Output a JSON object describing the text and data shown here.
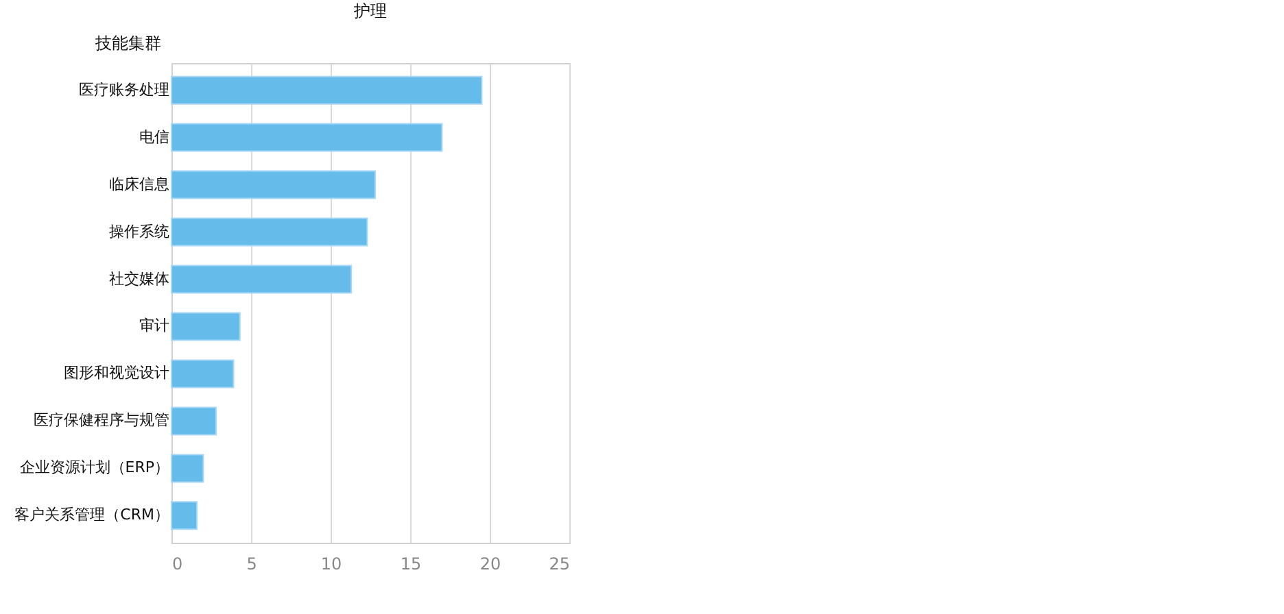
{
  "chart_data": {
    "type": "bar",
    "orientation": "horizontal",
    "title": "护理",
    "ylabel": "技能集群",
    "categories": [
      "医疗账务处理",
      "电信",
      "临床信息",
      "操作系统",
      "社交媒体",
      "审计",
      "图形和视觉设计",
      "医疗保健程序与规管",
      "企业资源计划（ERP）",
      "客户关系管理（CRM）"
    ],
    "values": [
      19.5,
      17.0,
      12.8,
      12.3,
      11.3,
      4.3,
      3.9,
      2.8,
      2.0,
      1.6
    ],
    "color": "#65bbea",
    "xlim": [
      0,
      25
    ],
    "xticks": [
      0,
      5,
      10,
      15,
      20,
      25
    ],
    "grid": "x"
  }
}
